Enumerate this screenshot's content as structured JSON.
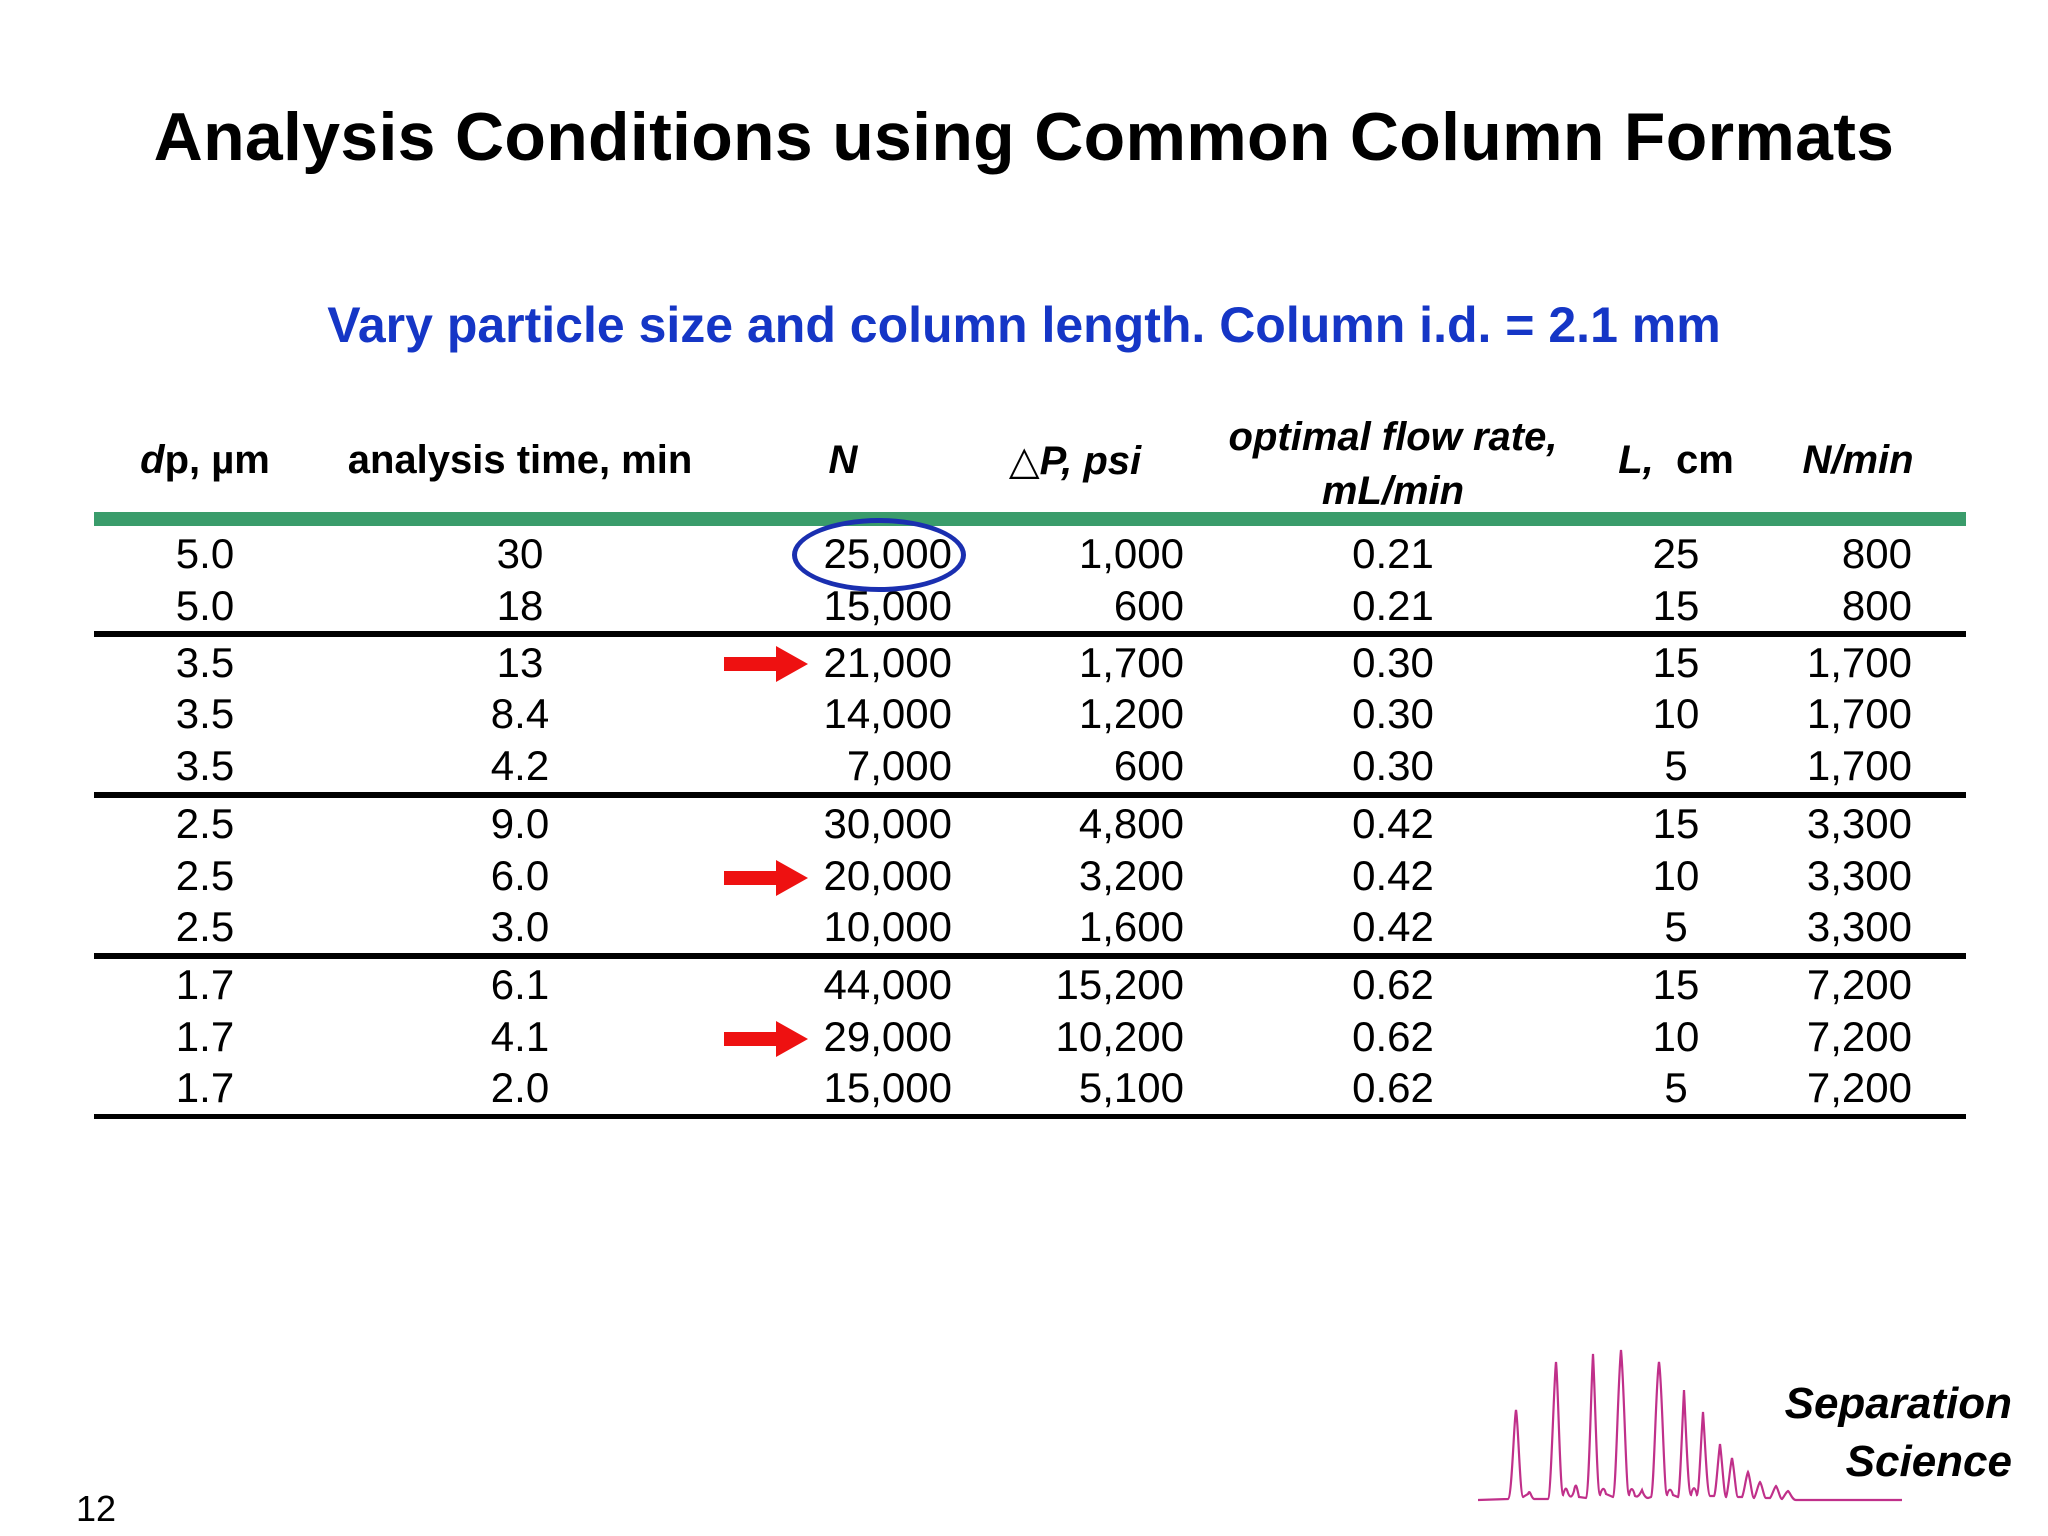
{
  "slide": {
    "title": "Analysis Conditions using Common Column Formats",
    "subtitle": "Vary particle size and column length.  Column i.d. = 2.1 mm",
    "page_number": "12"
  },
  "table": {
    "headers": {
      "dp_italic": "d",
      "dp_rest": "p, µm",
      "analysis_time": "analysis time, min",
      "n": "N",
      "dp_symbol": "△",
      "dp_pressure": "P, psi",
      "flow_line1": "optimal flow rate,",
      "flow_line2": "mL/min",
      "l_italic": "L,",
      "l_rest": "cm",
      "n_per_min": "N/min"
    },
    "rows": [
      {
        "dp": "5.0",
        "time": "30",
        "n": "25,000",
        "psi": "1,000",
        "flow": "0.21",
        "l": "25",
        "npm": "800"
      },
      {
        "dp": "5.0",
        "time": "18",
        "n": "15,000",
        "psi": "600",
        "flow": "0.21",
        "l": "15",
        "npm": "800"
      },
      {
        "dp": "3.5",
        "time": "13",
        "n": "21,000",
        "psi": "1,700",
        "flow": "0.30",
        "l": "15",
        "npm": "1,700"
      },
      {
        "dp": "3.5",
        "time": "8.4",
        "n": "14,000",
        "psi": "1,200",
        "flow": "0.30",
        "l": "10",
        "npm": "1,700"
      },
      {
        "dp": "3.5",
        "time": "4.2",
        "n": "7,000",
        "psi": "600",
        "flow": "0.30",
        "l": "5",
        "npm": "1,700"
      },
      {
        "dp": "2.5",
        "time": "9.0",
        "n": "30,000",
        "psi": "4,800",
        "flow": "0.42",
        "l": "15",
        "npm": "3,300"
      },
      {
        "dp": "2.5",
        "time": "6.0",
        "n": "20,000",
        "psi": "3,200",
        "flow": "0.42",
        "l": "10",
        "npm": "3,300"
      },
      {
        "dp": "2.5",
        "time": "3.0",
        "n": "10,000",
        "psi": "1,600",
        "flow": "0.42",
        "l": "5",
        "npm": "3,300"
      },
      {
        "dp": "1.7",
        "time": "6.1",
        "n": "44,000",
        "psi": "15,200",
        "flow": "0.62",
        "l": "15",
        "npm": "7,200"
      },
      {
        "dp": "1.7",
        "time": "4.1",
        "n": "29,000",
        "psi": "10,200",
        "flow": "0.62",
        "l": "10",
        "npm": "7,200"
      },
      {
        "dp": "1.7",
        "time": "2.0",
        "n": "15,000",
        "psi": "5,100",
        "flow": "0.62",
        "l": "5",
        "npm": "7,200"
      }
    ]
  },
  "logo": {
    "line1": "Separation",
    "line2": "Science"
  },
  "colors": {
    "subtitle": "#1536c6",
    "header_rule": "#3a9c6b",
    "highlight_ring": "#1a2fb0",
    "arrow": "#ee1111",
    "chromatogram": "#c0308a"
  }
}
